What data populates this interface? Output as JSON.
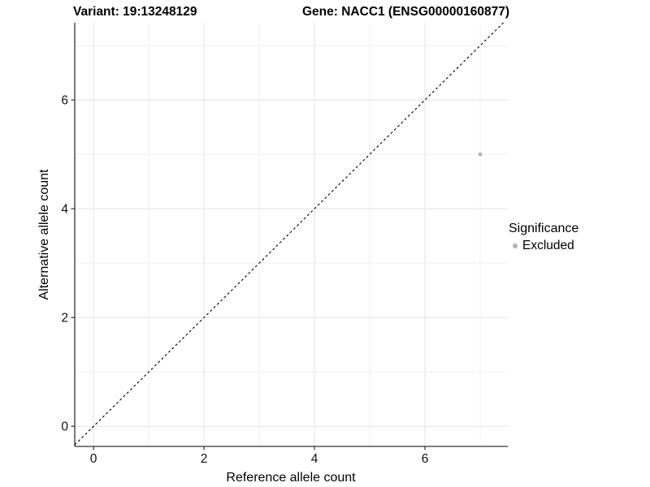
{
  "header": {
    "variant_title": "Variant: 19:13248129",
    "gene_title": "Gene: NACC1 (ENSG00000160877)"
  },
  "axes": {
    "x_label": "Reference allele count",
    "y_label": "Alternative allele count"
  },
  "legend": {
    "title": "Significance",
    "items": [
      {
        "label": "Excluded",
        "color": "#b3b3b3"
      }
    ]
  },
  "colors": {
    "point": "#b3b3b3",
    "major_grid": "#e6e6e6",
    "minor_grid": "#efefef",
    "axis_line": "#333333",
    "tick_text": "#111111",
    "reference_line": "#000000"
  },
  "chart_data": {
    "type": "scatter",
    "title_left": "Variant: 19:13248129",
    "title_right": "Gene: NACC1 (ENSG00000160877)",
    "xlabel": "Reference allele count",
    "ylabel": "Alternative allele count",
    "xlim": [
      -0.34,
      7.5
    ],
    "ylim": [
      -0.37,
      7.42
    ],
    "x_major_ticks": [
      0,
      2,
      4,
      6
    ],
    "y_major_ticks": [
      0,
      2,
      4,
      6
    ],
    "x_gridlines": [
      0,
      1,
      2,
      3,
      4,
      5,
      6,
      7
    ],
    "y_gridlines": [
      0,
      1,
      2,
      3,
      4,
      5,
      6,
      7
    ],
    "grid": true,
    "legend_position": "right",
    "legend_title": "Significance",
    "series": [
      {
        "name": "Excluded",
        "color": "#b3b3b3",
        "points": [
          {
            "x": 7,
            "y": 5
          }
        ]
      }
    ],
    "reference_line": {
      "type": "identity",
      "slope": 1,
      "intercept": 0,
      "style": "dashed",
      "color": "#000000"
    }
  }
}
